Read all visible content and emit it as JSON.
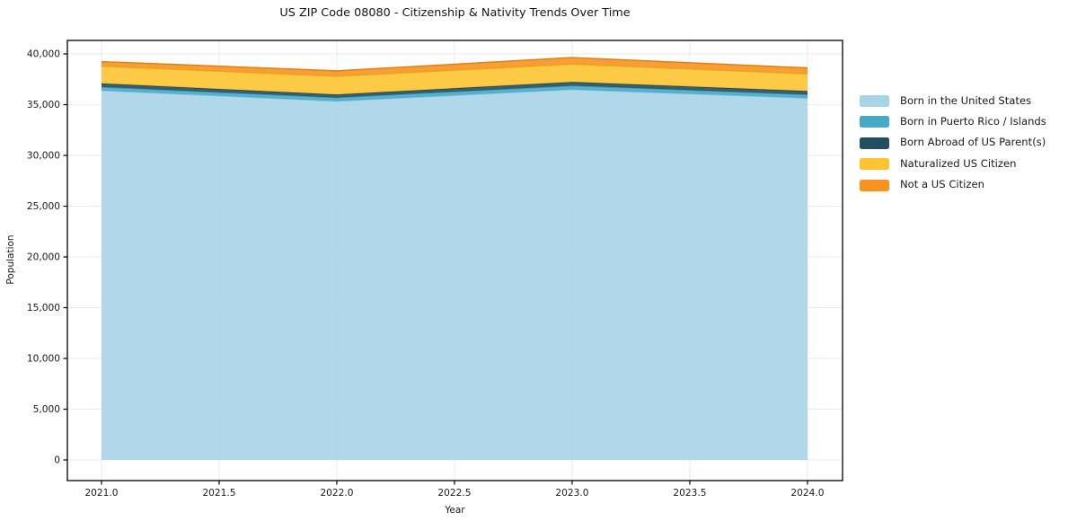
{
  "title": "US ZIP Code 08080 - Citizenship & Nativity Trends Over Time",
  "xlabel": "Year",
  "ylabel": "Population",
  "chart_data": {
    "type": "area",
    "stacked": true,
    "x": [
      2021,
      2022,
      2023,
      2024
    ],
    "series": [
      {
        "name": "Born in the United States",
        "color": "#a8d4e8",
        "edge": "#8fc3db",
        "values": [
          36400,
          35350,
          36500,
          35650
        ]
      },
      {
        "name": "Born in Puerto Rico / Islands",
        "color": "#45a9c7",
        "edge": "#3b97b3",
        "values": [
          350,
          350,
          380,
          350
        ]
      },
      {
        "name": "Born Abroad of US Parent(s)",
        "color": "#234e62",
        "edge": "#1b4052",
        "values": [
          340,
          300,
          350,
          340
        ]
      },
      {
        "name": "Naturalized US Citizen",
        "color": "#fcc430",
        "edge": "#e9af17",
        "values": [
          1700,
          1800,
          1760,
          1700
        ]
      },
      {
        "name": "Not a US Citizen",
        "color": "#f79420",
        "edge": "#e2820e",
        "values": [
          450,
          530,
          650,
          580
        ]
      }
    ],
    "totals": [
      39240,
      38330,
      39640,
      38620
    ],
    "xticks": {
      "values": [
        2021.0,
        2021.5,
        2022.0,
        2022.5,
        2023.0,
        2023.5,
        2024.0
      ],
      "labels": [
        "2021.0",
        "2021.5",
        "2022.0",
        "2022.5",
        "2023.0",
        "2023.5",
        "2024.0"
      ]
    },
    "yticks": {
      "values": [
        0,
        5000,
        10000,
        15000,
        20000,
        25000,
        30000,
        35000,
        40000
      ],
      "labels": [
        "0",
        "5,000",
        "10,000",
        "15,000",
        "20,000",
        "25,000",
        "30,000",
        "35,000",
        "40,000"
      ]
    },
    "xlim": [
      2020.855,
      2024.149
    ],
    "ylim": [
      -2035,
      41330
    ],
    "grid": true,
    "legend_position": "right",
    "fill_opacity": 0.9
  },
  "colors": {
    "background": "#ffffff",
    "grid": "#e9e9e9",
    "spine": "#000000",
    "tick_text": "#1a1a1a"
  }
}
